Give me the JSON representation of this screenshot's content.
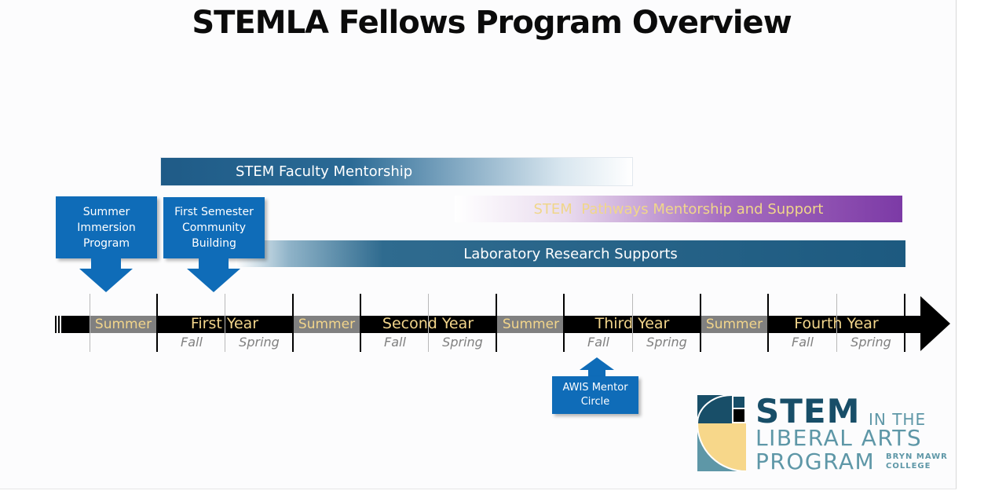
{
  "title": "STEMLA Fellows Program Overview",
  "bands": {
    "faculty": "STEM Faculty Mentorship",
    "pathways": "STEM  Pathways Mentorship and Support",
    "lab": "Laboratory Research Supports"
  },
  "callouts": {
    "summer_immersion": [
      "Summer",
      "Immersion",
      "Program"
    ],
    "first_semester": [
      "First Semester",
      "Community",
      "Building"
    ],
    "awis": [
      "AWIS Mentor",
      "Circle"
    ]
  },
  "timeline": {
    "summer_label": "Summer",
    "fall_label": "Fall",
    "spring_label": "Spring",
    "years": [
      "First Year",
      "Second Year",
      "Third Year",
      "Fourth Year"
    ]
  },
  "logo": {
    "stem": "STEM",
    "in_the": "IN THE",
    "liberal_arts": "LIBERAL ARTS",
    "program": "PROGRAM",
    "bryn_mawr": "BRYN MAWR",
    "college": "COLLEGE"
  },
  "colors": {
    "callout_blue": "#0f6cb8",
    "band_teal": "#1d5a80",
    "band_purple": "#7c3aa6",
    "gold_text": "#f2d58b",
    "summer_gray": "#808080",
    "logo_navy": "#184e68",
    "logo_teal": "#5e97a7",
    "logo_gold": "#f7d78a"
  }
}
